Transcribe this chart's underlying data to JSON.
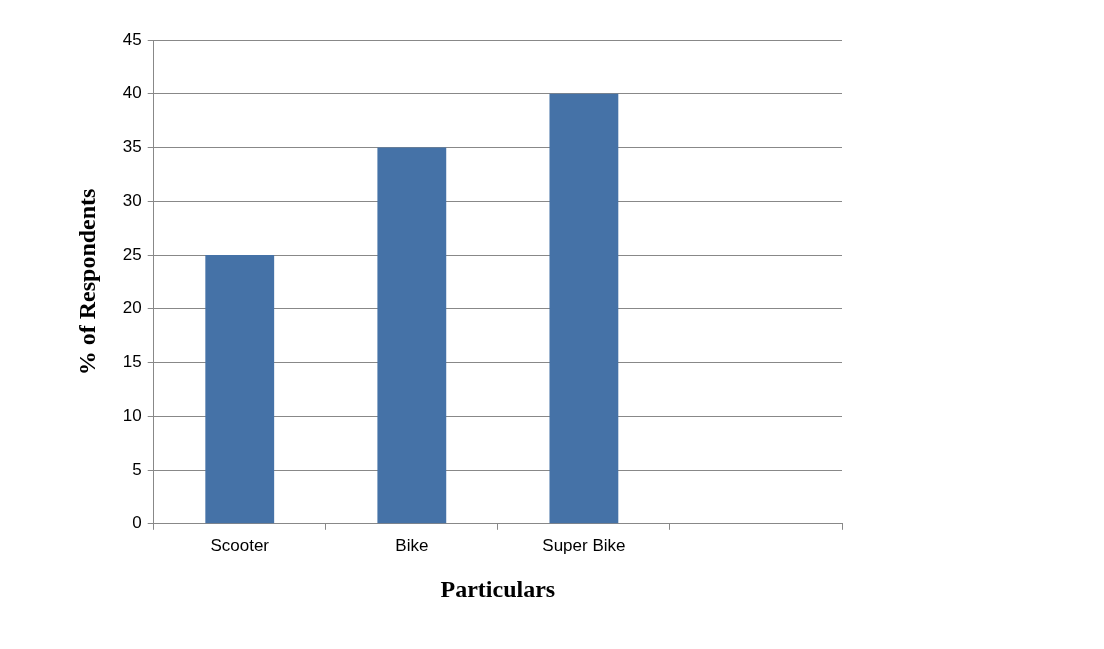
{
  "chart_data": {
    "type": "bar",
    "xlabel": "Particulars",
    "ylabel": "% of Respondents",
    "categories": [
      "Scooter",
      "Bike",
      "Super Bike",
      null
    ],
    "values": [
      25,
      35,
      40,
      null
    ],
    "color": "#4572a7",
    "ylim": [
      0,
      45
    ],
    "yticks": [
      0,
      5,
      10,
      15,
      20,
      25,
      30,
      35,
      40,
      45
    ],
    "grid": "y",
    "legend": false
  }
}
